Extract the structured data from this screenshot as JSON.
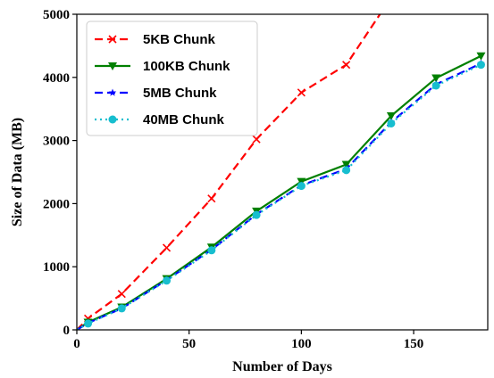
{
  "chart_data": {
    "type": "line",
    "title": "",
    "xlabel": "Number of Days",
    "ylabel": "Size of Data (MB)",
    "xlim": [
      0,
      183
    ],
    "ylim": [
      0,
      5000
    ],
    "xticks": [
      0,
      50,
      100,
      150
    ],
    "yticks": [
      0,
      1000,
      2000,
      3000,
      4000,
      5000
    ],
    "grid": false,
    "legend_position": "top-left",
    "series": [
      {
        "name": "5KB Chunk",
        "color": "#ff0000",
        "dash": "dashed",
        "marker": "x",
        "x": [
          0,
          5,
          20,
          40,
          60,
          80,
          100,
          120,
          135
        ],
        "y": [
          0,
          180,
          570,
          1300,
          2080,
          3020,
          3760,
          4200,
          5000
        ]
      },
      {
        "name": "100KB Chunk",
        "color": "#008000",
        "dash": "solid",
        "marker": "triangle-down",
        "x": [
          0,
          5,
          20,
          40,
          60,
          80,
          100,
          120,
          140,
          160,
          180
        ],
        "y": [
          0,
          120,
          360,
          810,
          1310,
          1880,
          2350,
          2620,
          3390,
          3990,
          4340
        ]
      },
      {
        "name": "5MB Chunk",
        "color": "#0000ff",
        "dash": "dashed",
        "marker": "star",
        "x": [
          0,
          5,
          20,
          40,
          60,
          80,
          100,
          120,
          140,
          160,
          180
        ],
        "y": [
          0,
          110,
          340,
          790,
          1270,
          1830,
          2290,
          2550,
          3290,
          3890,
          4220
        ]
      },
      {
        "name": "40MB Chunk",
        "color": "#17becf",
        "dash": "dotted",
        "marker": "circle",
        "x": [
          0,
          5,
          20,
          40,
          60,
          80,
          100,
          120,
          140,
          160,
          180
        ],
        "y": [
          0,
          100,
          340,
          780,
          1260,
          1820,
          2280,
          2530,
          3270,
          3870,
          4200
        ]
      }
    ]
  }
}
